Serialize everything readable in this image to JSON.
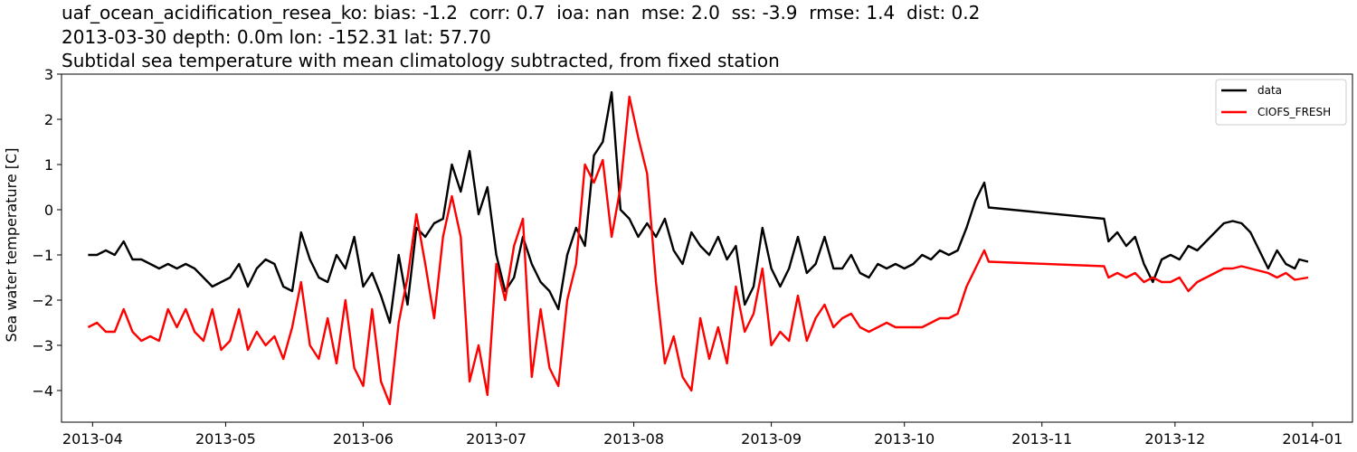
{
  "chart_data": {
    "type": "line",
    "title_lines": [
      "uaf_ocean_acidification_resea_ko: bias: -1.2  corr: 0.7  ioa: nan  mse: 2.0  ss: -3.9  rmse: 1.4  dist: 0.2",
      "2013-03-30 depth: 0.0m lon: -152.31 lat: 57.70",
      "Subtidal sea temperature with mean climatology subtracted, from fixed station"
    ],
    "xlabel": "",
    "ylabel": "Sea water temperature [C]",
    "x_range": [
      "2013-03-25",
      "2014-01-10"
    ],
    "ylim": [
      -4.7,
      3.0
    ],
    "x_ticks": [
      "2013-04-01",
      "2013-05-01",
      "2013-06-01",
      "2013-07-01",
      "2013-08-01",
      "2013-09-01",
      "2013-10-01",
      "2013-11-01",
      "2013-12-01",
      "2014-01-01"
    ],
    "x_tick_labels": [
      "2013-04",
      "2013-05",
      "2013-06",
      "2013-07",
      "2013-08",
      "2013-09",
      "2013-10",
      "2013-11",
      "2013-12",
      "2014-01"
    ],
    "y_ticks": [
      -4,
      -3,
      -2,
      -1,
      0,
      1,
      2,
      3
    ],
    "y_tick_labels": [
      "−4",
      "−3",
      "−2",
      "−1",
      "0",
      "1",
      "2",
      "3"
    ],
    "grid": false,
    "legend_position": "top-right",
    "series": [
      {
        "name": "data",
        "color": "#000000",
        "points": [
          [
            "2013-03-31",
            -1.0
          ],
          [
            "2013-04-02",
            -1.0
          ],
          [
            "2013-04-04",
            -0.9
          ],
          [
            "2013-04-06",
            -1.0
          ],
          [
            "2013-04-08",
            -0.7
          ],
          [
            "2013-04-10",
            -1.1
          ],
          [
            "2013-04-12",
            -1.1
          ],
          [
            "2013-04-14",
            -1.2
          ],
          [
            "2013-04-16",
            -1.3
          ],
          [
            "2013-04-18",
            -1.2
          ],
          [
            "2013-04-20",
            -1.3
          ],
          [
            "2013-04-22",
            -1.2
          ],
          [
            "2013-04-24",
            -1.3
          ],
          [
            "2013-04-26",
            -1.5
          ],
          [
            "2013-04-28",
            -1.7
          ],
          [
            "2013-04-30",
            -1.6
          ],
          [
            "2013-05-02",
            -1.5
          ],
          [
            "2013-05-04",
            -1.2
          ],
          [
            "2013-05-06",
            -1.7
          ],
          [
            "2013-05-08",
            -1.3
          ],
          [
            "2013-05-10",
            -1.1
          ],
          [
            "2013-05-12",
            -1.2
          ],
          [
            "2013-05-14",
            -1.7
          ],
          [
            "2013-05-16",
            -1.8
          ],
          [
            "2013-05-18",
            -0.5
          ],
          [
            "2013-05-20",
            -1.1
          ],
          [
            "2013-05-22",
            -1.5
          ],
          [
            "2013-05-24",
            -1.6
          ],
          [
            "2013-05-26",
            -1.0
          ],
          [
            "2013-05-28",
            -1.3
          ],
          [
            "2013-05-30",
            -0.6
          ],
          [
            "2013-06-01",
            -1.7
          ],
          [
            "2013-06-03",
            -1.4
          ],
          [
            "2013-06-05",
            -1.9
          ],
          [
            "2013-06-07",
            -2.5
          ],
          [
            "2013-06-09",
            -1.0
          ],
          [
            "2013-06-11",
            -2.1
          ],
          [
            "2013-06-13",
            -0.4
          ],
          [
            "2013-06-15",
            -0.6
          ],
          [
            "2013-06-17",
            -0.3
          ],
          [
            "2013-06-19",
            -0.2
          ],
          [
            "2013-06-21",
            1.0
          ],
          [
            "2013-06-23",
            0.4
          ],
          [
            "2013-06-25",
            1.3
          ],
          [
            "2013-06-27",
            -0.1
          ],
          [
            "2013-06-29",
            0.5
          ],
          [
            "2013-07-01",
            -1.0
          ],
          [
            "2013-07-03",
            -1.8
          ],
          [
            "2013-07-05",
            -1.5
          ],
          [
            "2013-07-07",
            -0.6
          ],
          [
            "2013-07-09",
            -1.2
          ],
          [
            "2013-07-11",
            -1.6
          ],
          [
            "2013-07-13",
            -1.8
          ],
          [
            "2013-07-15",
            -2.2
          ],
          [
            "2013-07-17",
            -1.0
          ],
          [
            "2013-07-19",
            -0.4
          ],
          [
            "2013-07-21",
            -0.8
          ],
          [
            "2013-07-23",
            1.2
          ],
          [
            "2013-07-25",
            1.5
          ],
          [
            "2013-07-27",
            2.6
          ],
          [
            "2013-07-29",
            0.0
          ],
          [
            "2013-07-31",
            -0.2
          ],
          [
            "2013-08-02",
            -0.6
          ],
          [
            "2013-08-04",
            -0.3
          ],
          [
            "2013-08-06",
            -0.6
          ],
          [
            "2013-08-08",
            -0.2
          ],
          [
            "2013-08-10",
            -0.9
          ],
          [
            "2013-08-12",
            -1.2
          ],
          [
            "2013-08-14",
            -0.5
          ],
          [
            "2013-08-16",
            -0.8
          ],
          [
            "2013-08-18",
            -1.0
          ],
          [
            "2013-08-20",
            -0.6
          ],
          [
            "2013-08-22",
            -1.1
          ],
          [
            "2013-08-24",
            -0.8
          ],
          [
            "2013-08-26",
            -2.1
          ],
          [
            "2013-08-28",
            -1.7
          ],
          [
            "2013-08-30",
            -0.4
          ],
          [
            "2013-09-01",
            -1.3
          ],
          [
            "2013-09-03",
            -1.7
          ],
          [
            "2013-09-05",
            -1.3
          ],
          [
            "2013-09-07",
            -0.6
          ],
          [
            "2013-09-09",
            -1.4
          ],
          [
            "2013-09-11",
            -1.2
          ],
          [
            "2013-09-13",
            -0.6
          ],
          [
            "2013-09-15",
            -1.3
          ],
          [
            "2013-09-17",
            -1.3
          ],
          [
            "2013-09-19",
            -1.0
          ],
          [
            "2013-09-21",
            -1.4
          ],
          [
            "2013-09-23",
            -1.5
          ],
          [
            "2013-09-25",
            -1.2
          ],
          [
            "2013-09-27",
            -1.3
          ],
          [
            "2013-09-29",
            -1.2
          ],
          [
            "2013-10-01",
            -1.3
          ],
          [
            "2013-10-03",
            -1.2
          ],
          [
            "2013-10-05",
            -1.0
          ],
          [
            "2013-10-07",
            -1.1
          ],
          [
            "2013-10-09",
            -0.9
          ],
          [
            "2013-10-11",
            -1.0
          ],
          [
            "2013-10-13",
            -0.9
          ],
          [
            "2013-10-15",
            -0.4
          ],
          [
            "2013-10-17",
            0.2
          ],
          [
            "2013-10-19",
            0.6
          ],
          [
            "2013-10-20",
            0.05
          ],
          [
            "2013-11-15",
            -0.2
          ],
          [
            "2013-11-16",
            -0.7
          ],
          [
            "2013-11-18",
            -0.5
          ],
          [
            "2013-11-20",
            -0.8
          ],
          [
            "2013-11-22",
            -0.6
          ],
          [
            "2013-11-24",
            -1.2
          ],
          [
            "2013-11-26",
            -1.6
          ],
          [
            "2013-11-28",
            -1.1
          ],
          [
            "2013-11-30",
            -1.0
          ],
          [
            "2013-12-02",
            -1.1
          ],
          [
            "2013-12-04",
            -0.8
          ],
          [
            "2013-12-06",
            -0.9
          ],
          [
            "2013-12-08",
            -0.7
          ],
          [
            "2013-12-10",
            -0.5
          ],
          [
            "2013-12-12",
            -0.3
          ],
          [
            "2013-12-14",
            -0.25
          ],
          [
            "2013-12-16",
            -0.3
          ],
          [
            "2013-12-18",
            -0.5
          ],
          [
            "2013-12-20",
            -0.9
          ],
          [
            "2013-12-22",
            -1.3
          ],
          [
            "2013-12-24",
            -0.9
          ],
          [
            "2013-12-26",
            -1.2
          ],
          [
            "2013-12-28",
            -1.3
          ],
          [
            "2013-12-29",
            -1.1
          ],
          [
            "2013-12-31",
            -1.15
          ]
        ]
      },
      {
        "name": "CIOFS_FRESH",
        "color": "#ff0000",
        "points": [
          [
            "2013-03-31",
            -2.6
          ],
          [
            "2013-04-02",
            -2.5
          ],
          [
            "2013-04-04",
            -2.7
          ],
          [
            "2013-04-06",
            -2.7
          ],
          [
            "2013-04-08",
            -2.2
          ],
          [
            "2013-04-10",
            -2.7
          ],
          [
            "2013-04-12",
            -2.9
          ],
          [
            "2013-04-14",
            -2.8
          ],
          [
            "2013-04-16",
            -2.9
          ],
          [
            "2013-04-18",
            -2.2
          ],
          [
            "2013-04-20",
            -2.6
          ],
          [
            "2013-04-22",
            -2.2
          ],
          [
            "2013-04-24",
            -2.7
          ],
          [
            "2013-04-26",
            -2.9
          ],
          [
            "2013-04-28",
            -2.2
          ],
          [
            "2013-04-30",
            -3.1
          ],
          [
            "2013-05-02",
            -2.9
          ],
          [
            "2013-05-04",
            -2.2
          ],
          [
            "2013-05-06",
            -3.1
          ],
          [
            "2013-05-08",
            -2.7
          ],
          [
            "2013-05-10",
            -3.0
          ],
          [
            "2013-05-12",
            -2.8
          ],
          [
            "2013-05-14",
            -3.3
          ],
          [
            "2013-05-16",
            -2.6
          ],
          [
            "2013-05-18",
            -1.6
          ],
          [
            "2013-05-20",
            -3.0
          ],
          [
            "2013-05-22",
            -3.3
          ],
          [
            "2013-05-24",
            -2.4
          ],
          [
            "2013-05-26",
            -3.4
          ],
          [
            "2013-05-28",
            -2.0
          ],
          [
            "2013-05-30",
            -3.5
          ],
          [
            "2013-06-01",
            -3.9
          ],
          [
            "2013-06-03",
            -2.2
          ],
          [
            "2013-06-05",
            -3.8
          ],
          [
            "2013-06-07",
            -4.3
          ],
          [
            "2013-06-09",
            -2.5
          ],
          [
            "2013-06-11",
            -1.5
          ],
          [
            "2013-06-13",
            -0.1
          ],
          [
            "2013-06-15",
            -1.2
          ],
          [
            "2013-06-17",
            -2.4
          ],
          [
            "2013-06-19",
            -0.6
          ],
          [
            "2013-06-21",
            0.3
          ],
          [
            "2013-06-23",
            -0.6
          ],
          [
            "2013-06-25",
            -3.8
          ],
          [
            "2013-06-27",
            -3.0
          ],
          [
            "2013-06-29",
            -4.1
          ],
          [
            "2013-07-01",
            -1.2
          ],
          [
            "2013-07-03",
            -2.0
          ],
          [
            "2013-07-05",
            -0.8
          ],
          [
            "2013-07-07",
            -0.2
          ],
          [
            "2013-07-09",
            -3.7
          ],
          [
            "2013-07-11",
            -2.2
          ],
          [
            "2013-07-13",
            -3.5
          ],
          [
            "2013-07-15",
            -3.9
          ],
          [
            "2013-07-17",
            -2.0
          ],
          [
            "2013-07-19",
            -1.2
          ],
          [
            "2013-07-21",
            1.0
          ],
          [
            "2013-07-23",
            0.6
          ],
          [
            "2013-07-25",
            1.1
          ],
          [
            "2013-07-27",
            -0.6
          ],
          [
            "2013-07-29",
            0.5
          ],
          [
            "2013-07-31",
            2.5
          ],
          [
            "2013-08-02",
            1.6
          ],
          [
            "2013-08-04",
            0.8
          ],
          [
            "2013-08-06",
            -1.6
          ],
          [
            "2013-08-08",
            -3.4
          ],
          [
            "2013-08-10",
            -2.8
          ],
          [
            "2013-08-12",
            -3.7
          ],
          [
            "2013-08-14",
            -4.0
          ],
          [
            "2013-08-16",
            -2.4
          ],
          [
            "2013-08-18",
            -3.3
          ],
          [
            "2013-08-20",
            -2.6
          ],
          [
            "2013-08-22",
            -3.4
          ],
          [
            "2013-08-24",
            -1.7
          ],
          [
            "2013-08-26",
            -2.7
          ],
          [
            "2013-08-28",
            -2.3
          ],
          [
            "2013-08-30",
            -1.3
          ],
          [
            "2013-09-01",
            -3.0
          ],
          [
            "2013-09-03",
            -2.7
          ],
          [
            "2013-09-05",
            -2.9
          ],
          [
            "2013-09-07",
            -1.9
          ],
          [
            "2013-09-09",
            -2.9
          ],
          [
            "2013-09-11",
            -2.4
          ],
          [
            "2013-09-13",
            -2.1
          ],
          [
            "2013-09-15",
            -2.6
          ],
          [
            "2013-09-17",
            -2.4
          ],
          [
            "2013-09-19",
            -2.3
          ],
          [
            "2013-09-21",
            -2.6
          ],
          [
            "2013-09-23",
            -2.7
          ],
          [
            "2013-09-25",
            -2.6
          ],
          [
            "2013-09-27",
            -2.5
          ],
          [
            "2013-09-29",
            -2.6
          ],
          [
            "2013-10-01",
            -2.6
          ],
          [
            "2013-10-03",
            -2.6
          ],
          [
            "2013-10-05",
            -2.6
          ],
          [
            "2013-10-07",
            -2.5
          ],
          [
            "2013-10-09",
            -2.4
          ],
          [
            "2013-10-11",
            -2.4
          ],
          [
            "2013-10-13",
            -2.3
          ],
          [
            "2013-10-15",
            -1.7
          ],
          [
            "2013-10-17",
            -1.3
          ],
          [
            "2013-10-19",
            -0.9
          ],
          [
            "2013-10-20",
            -1.15
          ],
          [
            "2013-11-15",
            -1.25
          ],
          [
            "2013-11-16",
            -1.5
          ],
          [
            "2013-11-18",
            -1.4
          ],
          [
            "2013-11-20",
            -1.5
          ],
          [
            "2013-11-22",
            -1.4
          ],
          [
            "2013-11-24",
            -1.6
          ],
          [
            "2013-11-26",
            -1.5
          ],
          [
            "2013-11-28",
            -1.6
          ],
          [
            "2013-11-30",
            -1.6
          ],
          [
            "2013-12-02",
            -1.5
          ],
          [
            "2013-12-04",
            -1.8
          ],
          [
            "2013-12-06",
            -1.6
          ],
          [
            "2013-12-08",
            -1.5
          ],
          [
            "2013-12-10",
            -1.4
          ],
          [
            "2013-12-12",
            -1.3
          ],
          [
            "2013-12-14",
            -1.3
          ],
          [
            "2013-12-16",
            -1.25
          ],
          [
            "2013-12-18",
            -1.3
          ],
          [
            "2013-12-20",
            -1.35
          ],
          [
            "2013-12-22",
            -1.4
          ],
          [
            "2013-12-24",
            -1.5
          ],
          [
            "2013-12-26",
            -1.4
          ],
          [
            "2013-12-28",
            -1.55
          ],
          [
            "2013-12-31",
            -1.5
          ]
        ]
      }
    ]
  }
}
